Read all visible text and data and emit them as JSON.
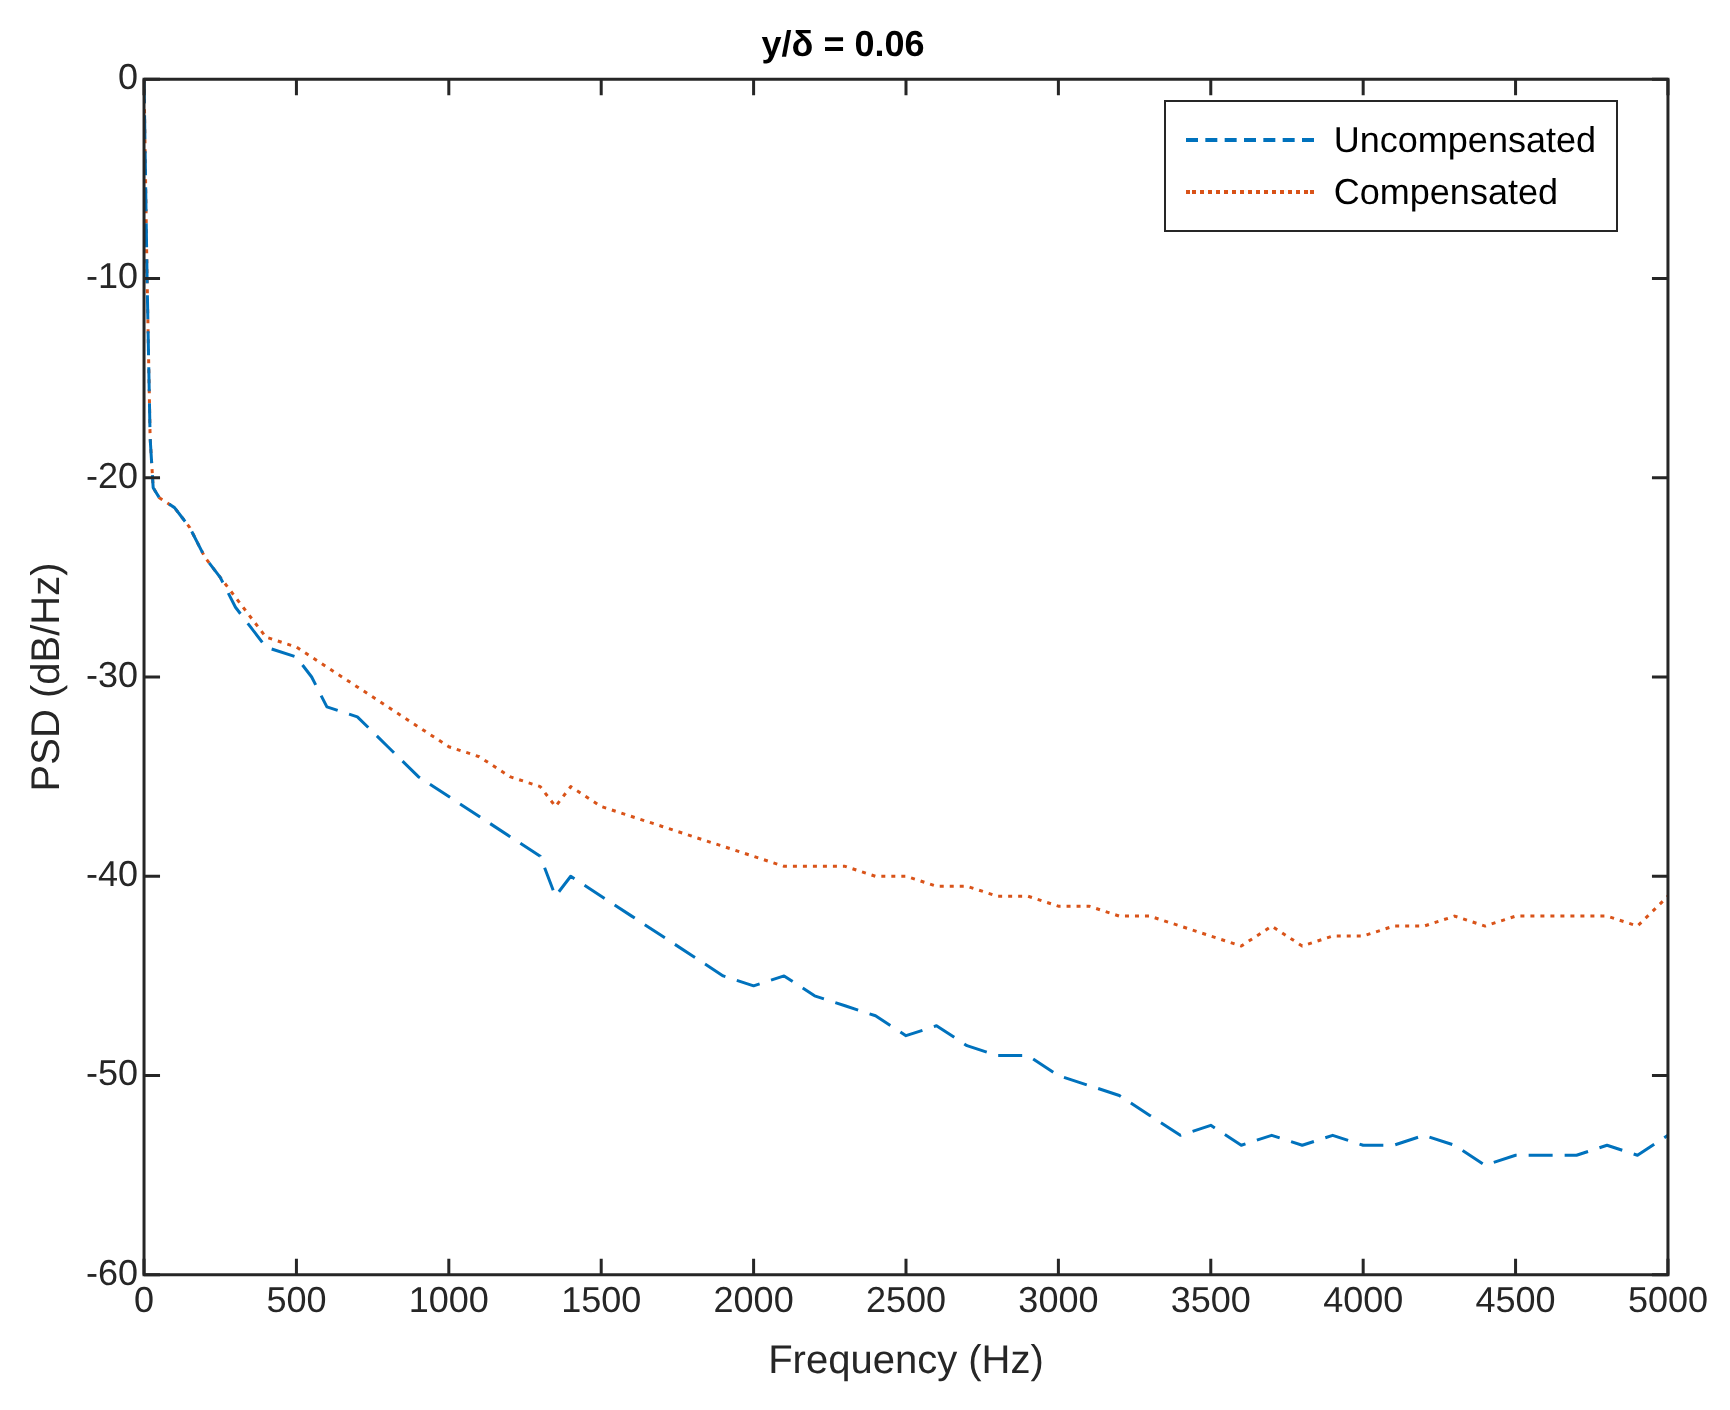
{
  "chart_data": {
    "type": "line",
    "title": "y/δ = 0.06",
    "xlabel": "Frequency (Hz)",
    "ylabel": "PSD (dB/Hz)",
    "x": [
      0,
      10,
      20,
      30,
      50,
      100,
      150,
      200,
      250,
      300,
      350,
      400,
      500,
      550,
      600,
      700,
      800,
      900,
      1000,
      1100,
      1200,
      1300,
      1350,
      1400,
      1500,
      1600,
      1700,
      1800,
      1900,
      2000,
      2100,
      2200,
      2300,
      2400,
      2500,
      2600,
      2700,
      2800,
      2900,
      3000,
      3100,
      3200,
      3300,
      3400,
      3500,
      3600,
      3700,
      3800,
      3900,
      4000,
      4100,
      4200,
      4300,
      4400,
      4500,
      4600,
      4700,
      4800,
      4900,
      5000
    ],
    "series": [
      {
        "name": "Uncompensated",
        "color": "#0072bd",
        "line_style": "dashed",
        "values": [
          0,
          -10,
          -18,
          -20.5,
          -21,
          -21.5,
          -22.5,
          -24,
          -25,
          -26.5,
          -27.5,
          -28.5,
          -29,
          -30,
          -31.5,
          -32,
          -33.5,
          -35,
          -36,
          -37,
          -38,
          -39,
          -41,
          -40,
          -41,
          -42,
          -43,
          -44,
          -45,
          -45.5,
          -45,
          -46,
          -46.5,
          -47,
          -48,
          -47.5,
          -48.5,
          -49,
          -49,
          -50,
          -50.5,
          -51,
          -52,
          -53,
          -52.5,
          -53.5,
          -53,
          -53.5,
          -53,
          -53.5,
          -53.5,
          -53,
          -53.5,
          -54.5,
          -54,
          -54,
          -54,
          -53.5,
          -54,
          -53
        ]
      },
      {
        "name": "Compensated",
        "color": "#d95319",
        "line_style": "dotted",
        "values": [
          0,
          -10,
          -18,
          -20.5,
          -21,
          -21.5,
          -22.5,
          -24,
          -25,
          -26,
          -27,
          -28,
          -28.5,
          -29,
          -29.5,
          -30.5,
          -31.5,
          -32.5,
          -33.5,
          -34,
          -35,
          -35.5,
          -36.5,
          -35.5,
          -36.5,
          -37,
          -37.5,
          -38,
          -38.5,
          -39,
          -39.5,
          -39.5,
          -39.5,
          -40,
          -40,
          -40.5,
          -40.5,
          -41,
          -41,
          -41.5,
          -41.5,
          -42,
          -42,
          -42.5,
          -43,
          -43.5,
          -42.5,
          -43.5,
          -43,
          -43,
          -42.5,
          -42.5,
          -42,
          -42.5,
          -42,
          -42,
          -42,
          -42,
          -42.5,
          -41
        ]
      }
    ],
    "xlim": [
      0,
      5000
    ],
    "xticks": [
      0,
      500,
      1000,
      1500,
      2000,
      2500,
      3000,
      3500,
      4000,
      4500,
      5000
    ],
    "ylim": [
      -60,
      0
    ],
    "yticks": [
      -60,
      -50,
      -40,
      -30,
      -20,
      -10,
      0
    ],
    "legend": "top right",
    "grid": false,
    "marker": "none"
  }
}
